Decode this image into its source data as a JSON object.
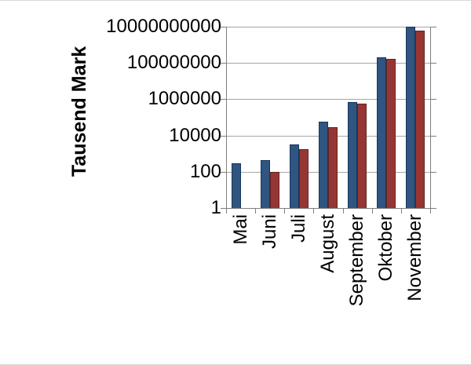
{
  "figure": {
    "background": "#FFFFFF",
    "frame_line_color": "#D9D9D9"
  },
  "chart_data": {
    "type": "bar",
    "y_scale": "log10",
    "title": "",
    "xlabel": "",
    "ylabel": "Tausend Mark",
    "ylim": [
      1,
      10000000000
    ],
    "y_tick_values": [
      1,
      100,
      10000,
      1000000,
      100000000,
      10000000000
    ],
    "y_tick_labels": [
      "1",
      "100",
      "10000",
      "1000000",
      "100000000",
      "10000000000"
    ],
    "categories": [
      "Mai",
      "Juni",
      "Juli",
      "August",
      "September",
      "Oktober",
      "November"
    ],
    "series": [
      {
        "name": "blue",
        "color": "#2F5580",
        "border_color": "#17375E",
        "values": [
          280,
          450,
          3300,
          55000,
          700000,
          200000000,
          10000000000
        ]
      },
      {
        "name": "dark-red",
        "color": "#963634",
        "border_color": "#632523",
        "values": [
          null,
          100,
          1700,
          30000,
          550000,
          170000000,
          6000000000
        ]
      }
    ],
    "grid": true,
    "gridline_color": "#A6A6A6",
    "axis_color": "#7F7F7F",
    "text_color": "#000000",
    "legend_position": "none"
  }
}
